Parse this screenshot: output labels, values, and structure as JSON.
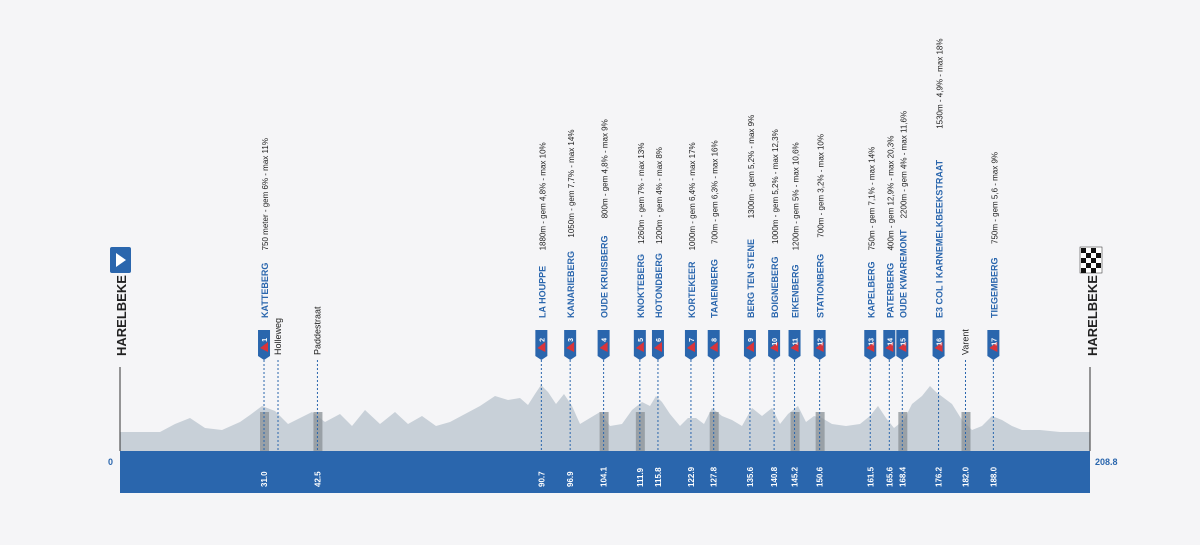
{
  "colors": {
    "background": "#f5f5f7",
    "band": "#2a66ad",
    "profile": "#c8d0d8",
    "climb_shade": "#8a9096",
    "flag": "#2a66ad",
    "flag_red": "#d9343a",
    "climb_name": "#2a66ad",
    "text": "#222222",
    "km_label": "#ffffff"
  },
  "start": {
    "name": "HARELBEKE",
    "km": "0",
    "icon": "start-arrow-icon"
  },
  "finish": {
    "name": "HARELBEKE",
    "km": "208.8",
    "icon": "checkered-flag-icon"
  },
  "chart_data": {
    "type": "area",
    "x_unit": "km",
    "x_range": [
      0,
      208.8
    ],
    "title": "",
    "xlabel": "",
    "ylabel": "",
    "grid": false,
    "climbs": [
      {
        "num": "1",
        "name": "KATTEBERG",
        "km": 31.0,
        "km_label": "31.0",
        "detail": "750 meter  -  gem 6%  -  max 11%"
      },
      {
        "num": "2",
        "name": "LA HOUPPE",
        "km": 90.7,
        "km_label": "90.7",
        "detail": "1880m  -  gem 4,8%  -  max 10%"
      },
      {
        "num": "3",
        "name": "KANARIEBERG",
        "km": 96.9,
        "km_label": "96.9",
        "detail": "1050m  -  gem 7,7%  -  max 14%"
      },
      {
        "num": "4",
        "name": "OUDE KRUISBERG",
        "km": 104.1,
        "km_label": "104.1",
        "detail": "800m  -  gem 4,8%  -  max 9%"
      },
      {
        "num": "5",
        "name": "KNOKTEBERG",
        "km": 111.9,
        "km_label": "111.9",
        "detail": "1260m  -  gem 7%  -  max 13%"
      },
      {
        "num": "6",
        "name": "HOTONDBERG",
        "km": 115.8,
        "km_label": "115.8",
        "detail": "1200m  -  gem 4%  -  max 8%"
      },
      {
        "num": "7",
        "name": "KORTEKEER",
        "km": 122.9,
        "km_label": "122.9",
        "detail": "1000m  -  gem 6,4%  -  max 17%"
      },
      {
        "num": "8",
        "name": "TAAIENBERG",
        "km": 127.8,
        "km_label": "127.8",
        "detail": "700m  -  gem 6,3%  -  max 16%"
      },
      {
        "num": "9",
        "name": "BERG TEN STENE",
        "km": 135.6,
        "km_label": "135.6",
        "detail": "1300m  -  gem 5,2%  -  max 9%"
      },
      {
        "num": "10",
        "name": "BOIGNEBERG",
        "km": 140.8,
        "km_label": "140.8",
        "detail": "1000m  -  gem 5,2%  -  max 12,3%"
      },
      {
        "num": "11",
        "name": "EIKENBERG",
        "km": 145.2,
        "km_label": "145.2",
        "detail": "1200m  -  gem 5%  -  max 10,6%"
      },
      {
        "num": "12",
        "name": "STATIONBERG",
        "km": 150.6,
        "km_label": "150.6",
        "detail": "700m  -  gem 3,2%  -  max 10%"
      },
      {
        "num": "13",
        "name": "KAPELBERG",
        "km": 161.5,
        "km_label": "161.5",
        "detail": "750m  -  gem 7,1%  -  max 14%"
      },
      {
        "num": "14",
        "name": "PATERBERG",
        "km": 165.6,
        "km_label": "165.6",
        "detail": "400m  -  gem 12,9%  -  max 20,3%"
      },
      {
        "num": "15",
        "name": "OUDE KWAREMONT",
        "km": 168.4,
        "km_label": "168.4",
        "detail": "2200m  -  gem 4%  -  max 11,6%"
      },
      {
        "num": "16",
        "name": "E3 COL I KARNEMELKBEEKSTRAAT",
        "km": 176.2,
        "km_label": "176.2",
        "detail": "1530m  -  4,9%  -  max 18%"
      },
      {
        "num": "17",
        "name": "TIEGEMBERG",
        "km": 188.0,
        "km_label": "188.0",
        "detail": "750m  -  gem 5,6  -  max 9%"
      }
    ],
    "sectors": [
      {
        "name": "Holleweg",
        "km": 31.0
      },
      {
        "name": "Paddestraat",
        "km": 42.5,
        "km_label": "42.5"
      },
      {
        "name": "Varent",
        "km": 182.0,
        "km_label": "182.0"
      }
    ]
  }
}
